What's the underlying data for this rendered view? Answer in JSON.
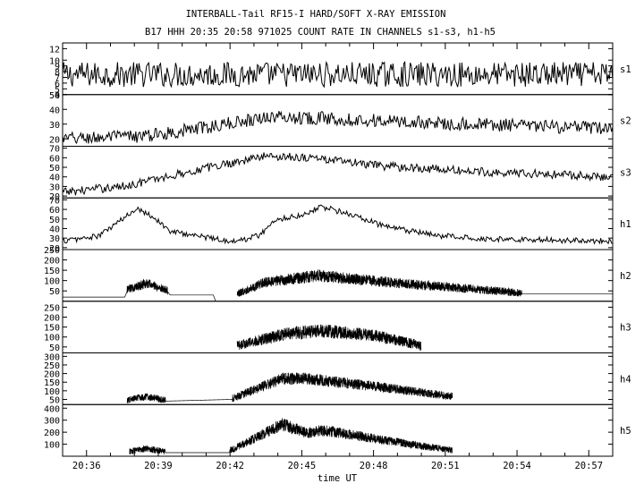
{
  "title_line1": "INTERBALL-Tail RF15-I HARD/SOFT X-RAY EMISSION",
  "title_line2": "B17 HHH 20:35 20:58 971025  COUNT RATE IN CHANNELS s1-s3, h1-h5",
  "chart_data": {
    "type": "line",
    "title": "INTERBALL-Tail RF15-I HARD/SOFT X-RAY EMISSION",
    "subtitle": "B17 HHH 20:35 20:58 971025  COUNT RATE IN CHANNELS s1-s3, h1-h5",
    "xlabel": "time UT",
    "x_ticks": [
      "20:36",
      "20:39",
      "20:42",
      "20:45",
      "20:48",
      "20:51",
      "20:54",
      "20:57"
    ],
    "x_range_minutes": [
      35.0,
      58.0
    ],
    "grid": false,
    "panels": [
      {
        "channel": "s1",
        "ylim": [
          4,
          13
        ],
        "ytick_labels": [
          "4",
          "5",
          "6",
          "7",
          "8",
          "9",
          "10",
          "12"
        ],
        "ytick_values": [
          4,
          5,
          6,
          7,
          8,
          9,
          10,
          12
        ],
        "trend": {
          "t": [
            35.0,
            58.0
          ],
          "v": [
            7.5,
            7.5
          ]
        },
        "noise": 2.2,
        "burst": null,
        "gaps": []
      },
      {
        "channel": "s2",
        "ylim": [
          15,
          50
        ],
        "ytick_labels": [
          "20",
          "30",
          "40",
          "50"
        ],
        "ytick_values": [
          20,
          30,
          40,
          50
        ],
        "trend": {
          "t": [
            35.0,
            38.5,
            41.5,
            43.5,
            46.0,
            50.0,
            54.0,
            58.0
          ],
          "v": [
            20,
            22,
            29,
            35,
            34,
            31,
            29,
            27
          ]
        },
        "noise": 4.5,
        "burst": null,
        "gaps": []
      },
      {
        "channel": "s3",
        "ylim": [
          18,
          72
        ],
        "ytick_labels": [
          "20",
          "30",
          "40",
          "50",
          "60",
          "70"
        ],
        "ytick_values": [
          20,
          30,
          40,
          50,
          60,
          70
        ],
        "trend": {
          "t": [
            35.0,
            37.5,
            41.5,
            43.5,
            45.5,
            48.0,
            52.0,
            58.0
          ],
          "v": [
            24,
            30,
            52,
            62,
            60,
            52,
            46,
            40
          ]
        },
        "noise": 4.5,
        "burst": null,
        "gaps": []
      },
      {
        "channel": "h1",
        "ylim": [
          18,
          72
        ],
        "ytick_labels": [
          "20",
          "30",
          "40",
          "50",
          "60",
          "70"
        ],
        "ytick_values": [
          20,
          30,
          40,
          50,
          60,
          70
        ],
        "trend": {
          "t": [
            35.0,
            36.5,
            37.8,
            38.1,
            38.8,
            39.5,
            41.5,
            42.2,
            43.2,
            44.0,
            45.0,
            45.8,
            47.0,
            48.5,
            50.5,
            53.0,
            58.0
          ],
          "v": [
            27,
            32,
            55,
            62,
            52,
            37,
            29,
            26,
            33,
            50,
            54,
            63,
            55,
            42,
            33,
            29,
            27
          ]
        },
        "noise": 3.0,
        "burst": null,
        "gaps": []
      },
      {
        "channel": "h2",
        "ylim": [
          0,
          250
        ],
        "ytick_labels": [
          "50",
          "100",
          "150",
          "200",
          "250"
        ],
        "ytick_values": [
          50,
          100,
          150,
          200,
          250
        ],
        "trend": {
          "t": [
            35.0,
            37.6,
            37.7,
            38.5,
            39.4,
            39.5,
            41.3,
            41.4,
            42.2,
            42.3,
            43.5,
            45.7,
            49.0,
            54.2,
            54.3,
            58.0
          ],
          "v": [
            20,
            20,
            50,
            80,
            45,
            30,
            30,
            0,
            0,
            30,
            85,
            115,
            80,
            35,
            35,
            35
          ]
        },
        "noise": 70,
        "burst": [
          37.7,
          39.4,
          42.3,
          54.2
        ],
        "gaps": [
          [
            41.4,
            42.3
          ]
        ]
      },
      {
        "channel": "h3",
        "ylim": [
          20,
          280
        ],
        "ytick_labels": [
          "50",
          "100",
          "150",
          "200",
          "250"
        ],
        "ytick_values": [
          50,
          100,
          150,
          200,
          250
        ],
        "trend": {
          "t": [
            42.3,
            44.5,
            46.0,
            48.0,
            49.8,
            50.0
          ],
          "v": [
            50,
            110,
            120,
            100,
            55,
            45
          ]
        },
        "noise": 80,
        "burst": [
          42.3,
          50.0
        ],
        "gaps": []
      },
      {
        "channel": "h4",
        "ylim": [
          20,
          320
        ],
        "ytick_labels": [
          "50",
          "100",
          "150",
          "200",
          "250",
          "300"
        ],
        "ytick_values": [
          50,
          100,
          150,
          200,
          250,
          300
        ],
        "trend": {
          "t": [
            37.7,
            38.5,
            39.3,
            42.1,
            44.2,
            45.2,
            48.5,
            51.3
          ],
          "v": [
            40,
            60,
            40,
            50,
            160,
            160,
            110,
            60
          ]
        },
        "noise": 75,
        "burst": [
          37.7,
          39.3,
          42.1,
          51.3
        ],
        "gaps": []
      },
      {
        "channel": "h5",
        "ylim": [
          0,
          430
        ],
        "ytick_labels": [
          "100",
          "200",
          "300",
          "400"
        ],
        "ytick_values": [
          100,
          200,
          300,
          400
        ],
        "trend": {
          "t": [
            37.8,
            38.5,
            39.3,
            41.5,
            41.95,
            42.0,
            44.2,
            45.2,
            46.0,
            48.5,
            51.3
          ],
          "v": [
            30,
            55,
            30,
            30,
            30,
            40,
            250,
            180,
            200,
            120,
            40
          ]
        },
        "noise": 110,
        "burst": [
          37.8,
          39.3,
          42.0,
          51.3
        ],
        "gaps": []
      }
    ]
  }
}
